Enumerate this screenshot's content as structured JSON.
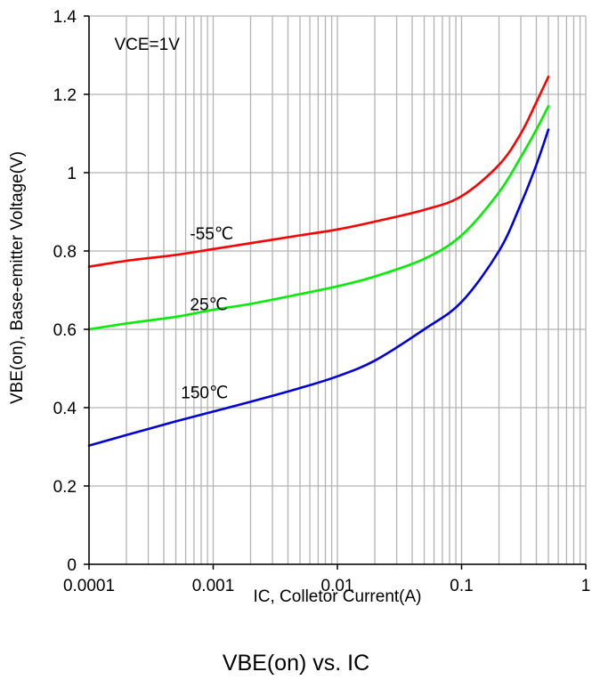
{
  "caption": "VBE(on) vs. IC",
  "colors": {
    "series_1": "#ff0000",
    "series_2": "#00ee00",
    "series_3": "#0000dd",
    "grid": "#b3b3b3",
    "axis": "#000000"
  },
  "chart_data": {
    "type": "line",
    "title": "",
    "xlabel": "IC, Colletor Current(A)",
    "ylabel": "VBE(on), Base-emitter Voltage(V)",
    "xscale": "log",
    "xlim": [
      0.0001,
      1
    ],
    "ylim": [
      0,
      1.4
    ],
    "grid": true,
    "legend": "none",
    "xticks": [
      "0.0001",
      "0.001",
      "0.01",
      "0.1",
      "1"
    ],
    "yticks": [
      "0",
      "0.2",
      "0.4",
      "0.6",
      "0.8",
      "1",
      "1.2",
      "1.4"
    ],
    "annotations": [
      {
        "text": "VCE=1V",
        "x": 0.00016,
        "y": 1.33
      },
      {
        "text": "-55℃",
        "x": 0.00065,
        "y": 0.845
      },
      {
        "text": "25℃",
        "x": 0.00065,
        "y": 0.665
      },
      {
        "text": "150℃",
        "x": 0.00055,
        "y": 0.44
      }
    ],
    "series": [
      {
        "name": "-55℃",
        "label": "-55℃",
        "x": [
          0.0001,
          0.0002,
          0.0005,
          0.001,
          0.002,
          0.005,
          0.01,
          0.02,
          0.05,
          0.1,
          0.2,
          0.3,
          0.4,
          0.5
        ],
        "y": [
          0.76,
          0.775,
          0.79,
          0.805,
          0.82,
          0.84,
          0.855,
          0.875,
          0.905,
          0.94,
          1.02,
          1.1,
          1.18,
          1.245
        ]
      },
      {
        "name": "25℃",
        "label": "25℃",
        "x": [
          0.0001,
          0.0002,
          0.0005,
          0.001,
          0.002,
          0.005,
          0.01,
          0.02,
          0.05,
          0.1,
          0.2,
          0.3,
          0.4,
          0.5
        ],
        "y": [
          0.6,
          0.615,
          0.632,
          0.65,
          0.665,
          0.69,
          0.71,
          0.735,
          0.78,
          0.84,
          0.95,
          1.04,
          1.11,
          1.17
        ]
      },
      {
        "name": "150℃",
        "label": "150℃",
        "x": [
          0.0001,
          0.0002,
          0.0005,
          0.001,
          0.002,
          0.005,
          0.01,
          0.02,
          0.05,
          0.1,
          0.2,
          0.3,
          0.4,
          0.5
        ],
        "y": [
          0.303,
          0.33,
          0.365,
          0.39,
          0.415,
          0.45,
          0.48,
          0.52,
          0.6,
          0.67,
          0.8,
          0.92,
          1.02,
          1.11
        ]
      }
    ]
  }
}
